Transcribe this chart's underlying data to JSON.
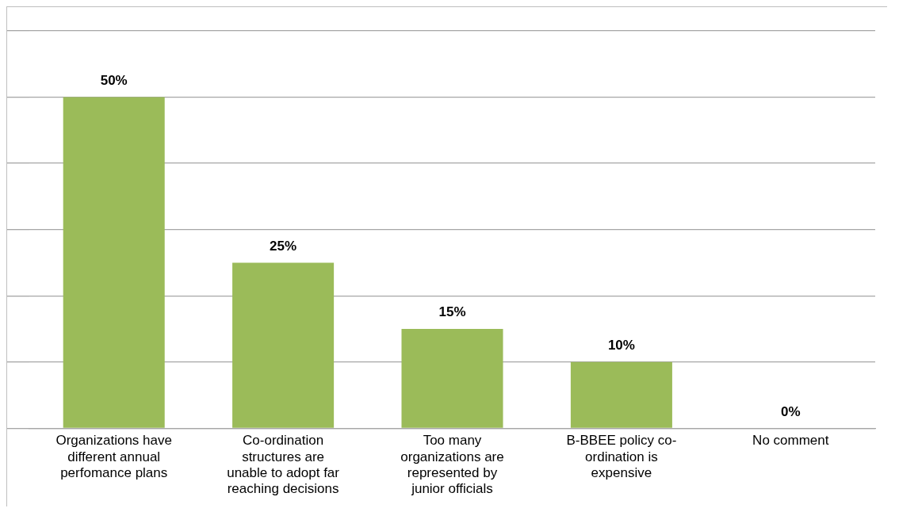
{
  "chart_data": {
    "type": "bar",
    "categories": [
      "Organizations have different annual perfomance plans",
      "Co-ordination structures are unable to adopt far reaching decisions",
      "Too many organizations are represented by junior officials",
      "B-BBEE policy co-ordination is expensive",
      "No comment"
    ],
    "values": [
      50,
      25,
      15,
      10,
      0
    ],
    "color": "#9bbb59",
    "value_labels": [
      "50%",
      "25%",
      "15%",
      "10%",
      "0%"
    ],
    "ylim": [
      0,
      60
    ],
    "yticks": [
      {
        "value": 0,
        "label": null
      },
      {
        "value": 10,
        "label": null
      },
      {
        "value": 20,
        "label": null
      },
      {
        "value": 30,
        "label": null
      },
      {
        "value": 40,
        "label": null
      },
      {
        "value": 50,
        "label": null
      },
      {
        "value": 60,
        "label": null
      }
    ],
    "grid": "y",
    "tick_labels": "x",
    "legend": false
  }
}
